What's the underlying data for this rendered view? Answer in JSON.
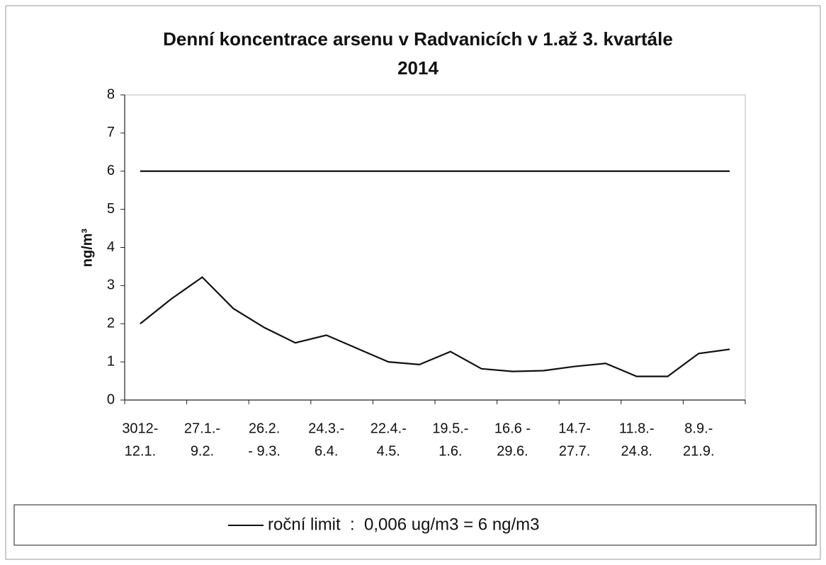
{
  "chart_data": {
    "type": "line",
    "title": [
      "Denní koncentrace arsenu v Radvanicích v 1.až 3. kvartále",
      "2014"
    ],
    "ylabel": "ng/m³",
    "categories": [
      [
        "3012-",
        "12.1."
      ],
      null,
      [
        "27.1.-",
        "9.2."
      ],
      null,
      [
        "26.2.",
        "- 9.3."
      ],
      null,
      [
        "24.3.-",
        "6.4."
      ],
      null,
      [
        "22.4.-",
        "4.5."
      ],
      null,
      [
        "19.5.-",
        "1.6."
      ],
      null,
      [
        "16.6 -",
        "29.6."
      ],
      null,
      [
        "14.7-",
        "27.7."
      ],
      null,
      [
        "11.8.-",
        "24.8."
      ],
      null,
      [
        "8.9.-",
        "21.9."
      ],
      null
    ],
    "series": [
      {
        "color": "#111111",
        "values": [
          2.0,
          2.65,
          3.22,
          2.4,
          1.9,
          1.5,
          1.7,
          1.35,
          1.0,
          0.93,
          1.27,
          0.82,
          0.75,
          0.77,
          0.88,
          0.96,
          0.62,
          0.62,
          1.22,
          1.33
        ]
      },
      {
        "name": "roční limit  :  0,006 ug/m3 = 6 ng/m3",
        "color": "#111111",
        "values": [
          6,
          6,
          6,
          6,
          6,
          6,
          6,
          6,
          6,
          6,
          6,
          6,
          6,
          6,
          6,
          6,
          6,
          6,
          6,
          6
        ]
      }
    ],
    "ylim": [
      0,
      8
    ],
    "yticks": [
      0,
      1,
      2,
      3,
      4,
      5,
      6,
      7,
      8
    ],
    "legend": "bottom"
  }
}
